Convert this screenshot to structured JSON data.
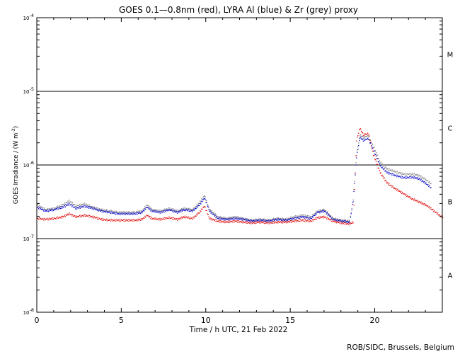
{
  "chart_data": {
    "type": "scatter",
    "title": "GOES 0.1—0.8nm (red), LYRA Al (blue) & Zr (grey) proxy",
    "xlabel": "Time / h UTC, 21 Feb 2022",
    "ylabel": "GOES Irradiance / (W m",
    "ylabel_exponent": "-2",
    "ylabel_close": ")",
    "xlim": [
      0,
      24
    ],
    "ylim": [
      1e-08,
      0.0001
    ],
    "yscale": "log",
    "x_ticks": [
      0,
      5,
      10,
      15,
      20
    ],
    "y_ticks": [
      {
        "value": 1e-08,
        "base": "10",
        "exp": "-8"
      },
      {
        "value": 1e-07,
        "base": "10",
        "exp": "-7"
      },
      {
        "value": 1e-06,
        "base": "10",
        "exp": "-6"
      },
      {
        "value": 1e-05,
        "base": "10",
        "exp": "-5"
      },
      {
        "value": 0.0001,
        "base": "10",
        "exp": "-4"
      }
    ],
    "flare_class_lines": [
      1e-07,
      1e-06,
      1e-05
    ],
    "flare_classes": [
      {
        "label": "A",
        "value": 3.2e-08
      },
      {
        "label": "B",
        "value": 3.2e-07
      },
      {
        "label": "C",
        "value": 3.2e-06
      },
      {
        "label": "M",
        "value": 3.2e-05
      }
    ],
    "credit": "ROB/SIDC, Brussels, Belgium",
    "series": [
      {
        "color": "#808080",
        "x": [
          0,
          0.5,
          1,
          1.5,
          1.9,
          2.3,
          2.8,
          3.3,
          3.8,
          4.3,
          4.8,
          5.3,
          5.8,
          6.2,
          6.5,
          6.8,
          7.3,
          7.8,
          8.3,
          8.7,
          9.2,
          9.6,
          9.9,
          10.2,
          10.7,
          11.2,
          11.7,
          12.2,
          12.7,
          13.2,
          13.7,
          14.2,
          14.7,
          15.2,
          15.7,
          16.2,
          16.6,
          17.0,
          17.5,
          18.0,
          18.5,
          18.7,
          18.9,
          19.1,
          19.3,
          19.6,
          19.9,
          20.3,
          20.7,
          21.2,
          21.7,
          22.2,
          22.6,
          23.0,
          23.3
        ],
        "y": [
          2.9e-07,
          2.5e-07,
          2.6e-07,
          2.9e-07,
          3.3e-07,
          2.8e-07,
          3e-07,
          2.7e-07,
          2.5e-07,
          2.4e-07,
          2.3e-07,
          2.3e-07,
          2.3e-07,
          2.4e-07,
          2.9e-07,
          2.5e-07,
          2.4e-07,
          2.6e-07,
          2.4e-07,
          2.6e-07,
          2.5e-07,
          3.1e-07,
          3.9e-07,
          2.5e-07,
          2e-07,
          1.9e-07,
          2e-07,
          1.9e-07,
          1.8e-07,
          1.85e-07,
          1.8e-07,
          1.9e-07,
          1.85e-07,
          2e-07,
          2.1e-07,
          2e-07,
          2.4e-07,
          2.5e-07,
          1.9e-07,
          1.8e-07,
          1.75e-07,
          3.5e-07,
          1.4e-06,
          2.6e-06,
          2.4e-06,
          2.5e-06,
          1.8e-06,
          1.1e-06,
          9e-07,
          8.2e-07,
          7.6e-07,
          7.6e-07,
          7.3e-07,
          6.4e-07,
          5.7e-07
        ]
      },
      {
        "color": "#0000cc",
        "x": [
          0,
          0.5,
          1,
          1.5,
          1.9,
          2.3,
          2.8,
          3.3,
          3.8,
          4.3,
          4.8,
          5.3,
          5.8,
          6.2,
          6.5,
          6.8,
          7.3,
          7.8,
          8.3,
          8.7,
          9.2,
          9.6,
          9.9,
          10.2,
          10.7,
          11.2,
          11.7,
          12.2,
          12.7,
          13.2,
          13.7,
          14.2,
          14.7,
          15.2,
          15.7,
          16.2,
          16.6,
          17.0,
          17.5,
          18.0,
          18.5,
          18.7,
          18.9,
          19.1,
          19.3,
          19.6,
          19.9,
          20.3,
          20.7,
          21.2,
          21.7,
          22.2,
          22.6,
          23.0,
          23.3
        ],
        "y": [
          2.7e-07,
          2.4e-07,
          2.5e-07,
          2.7e-07,
          3e-07,
          2.6e-07,
          2.8e-07,
          2.6e-07,
          2.4e-07,
          2.3e-07,
          2.2e-07,
          2.2e-07,
          2.2e-07,
          2.3e-07,
          2.7e-07,
          2.4e-07,
          2.3e-07,
          2.5e-07,
          2.3e-07,
          2.5e-07,
          2.4e-07,
          2.9e-07,
          3.6e-07,
          2.4e-07,
          1.9e-07,
          1.85e-07,
          1.9e-07,
          1.85e-07,
          1.75e-07,
          1.8e-07,
          1.75e-07,
          1.85e-07,
          1.8e-07,
          1.9e-07,
          2e-07,
          1.9e-07,
          2.3e-07,
          2.4e-07,
          1.85e-07,
          1.75e-07,
          1.7e-07,
          3.3e-07,
          1.3e-06,
          2.4e-06,
          2.2e-06,
          2.3e-06,
          1.6e-06,
          1e-06,
          8e-07,
          7.3e-07,
          6.8e-07,
          6.9e-07,
          6.6e-07,
          5.7e-07,
          5e-07
        ]
      },
      {
        "color": "#dd0000",
        "x": [
          0,
          0.5,
          1,
          1.5,
          1.9,
          2.3,
          2.8,
          3.3,
          3.8,
          4.3,
          4.8,
          5.3,
          5.8,
          6.2,
          6.5,
          6.8,
          7.3,
          7.8,
          8.3,
          8.7,
          9.2,
          9.6,
          9.9,
          10.2,
          10.7,
          11.2,
          11.7,
          12.2,
          12.7,
          13.2,
          13.7,
          14.2,
          14.7,
          15.2,
          15.7,
          16.2,
          16.6,
          17.0,
          17.5,
          18.0,
          18.5,
          18.7,
          18.9,
          19.1,
          19.3,
          19.6,
          19.9,
          20.3,
          20.7,
          21.2,
          21.7,
          22.2,
          22.6,
          23.0,
          23.3,
          23.7,
          24.0
        ],
        "y": [
          1.9e-07,
          1.85e-07,
          1.9e-07,
          2e-07,
          2.2e-07,
          2e-07,
          2.1e-07,
          2e-07,
          1.85e-07,
          1.8e-07,
          1.8e-07,
          1.8e-07,
          1.8e-07,
          1.85e-07,
          2.1e-07,
          1.9e-07,
          1.85e-07,
          1.95e-07,
          1.85e-07,
          2e-07,
          1.9e-07,
          2.3e-07,
          2.8e-07,
          1.9e-07,
          1.75e-07,
          1.7e-07,
          1.75e-07,
          1.7e-07,
          1.65e-07,
          1.7e-07,
          1.65e-07,
          1.7e-07,
          1.7e-07,
          1.75e-07,
          1.8e-07,
          1.75e-07,
          1.95e-07,
          2e-07,
          1.75e-07,
          1.65e-07,
          1.6e-07,
          1.7e-07,
          2.2e-06,
          3.2e-06,
          2.6e-06,
          2.7e-06,
          1.4e-06,
          8e-07,
          5.8e-07,
          4.8e-07,
          4.1e-07,
          3.5e-07,
          3.2e-07,
          2.9e-07,
          2.6e-07,
          2.2e-07,
          1.95e-07
        ]
      }
    ]
  }
}
